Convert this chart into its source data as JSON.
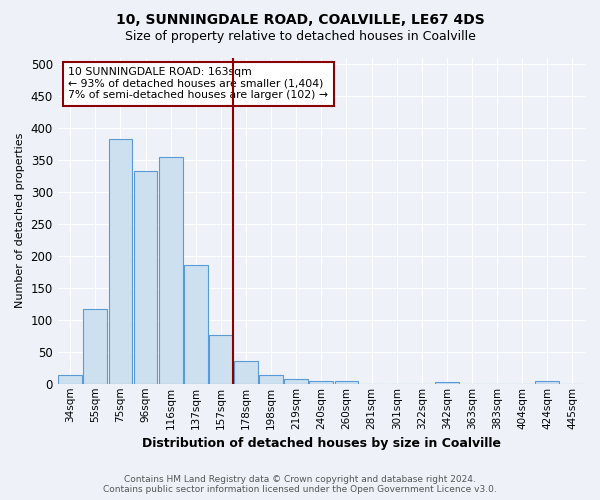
{
  "title1": "10, SUNNINGDALE ROAD, COALVILLE, LE67 4DS",
  "title2": "Size of property relative to detached houses in Coalville",
  "xlabel": "Distribution of detached houses by size in Coalville",
  "ylabel": "Number of detached properties",
  "footer1": "Contains HM Land Registry data © Crown copyright and database right 2024.",
  "footer2": "Contains public sector information licensed under the Open Government Licence v3.0.",
  "categories": [
    "34sqm",
    "55sqm",
    "75sqm",
    "96sqm",
    "116sqm",
    "137sqm",
    "157sqm",
    "178sqm",
    "198sqm",
    "219sqm",
    "240sqm",
    "260sqm",
    "281sqm",
    "301sqm",
    "322sqm",
    "342sqm",
    "363sqm",
    "383sqm",
    "404sqm",
    "424sqm",
    "445sqm"
  ],
  "values": [
    13,
    117,
    383,
    333,
    355,
    186,
    76,
    36,
    13,
    7,
    4,
    4,
    0,
    0,
    0,
    3,
    0,
    0,
    0,
    4,
    0
  ],
  "bar_color": "#cce0f0",
  "bar_edge_color": "#5b9bd5",
  "annotation_line_color": "#8b0000",
  "annotation_box_line1": "10 SUNNINGDALE ROAD: 163sqm",
  "annotation_box_line2": "← 93% of detached houses are smaller (1,404)",
  "annotation_box_line3": "7% of semi-detached houses are larger (102) →",
  "annotation_box_color": "#8b0000",
  "annotation_box_fill": "#ffffff",
  "ylim": [
    0,
    510
  ],
  "yticks": [
    0,
    50,
    100,
    150,
    200,
    250,
    300,
    350,
    400,
    450,
    500
  ],
  "bg_color": "#eef2f8",
  "grid_color": "#ffffff",
  "title1_fontsize": 10,
  "title2_fontsize": 9
}
